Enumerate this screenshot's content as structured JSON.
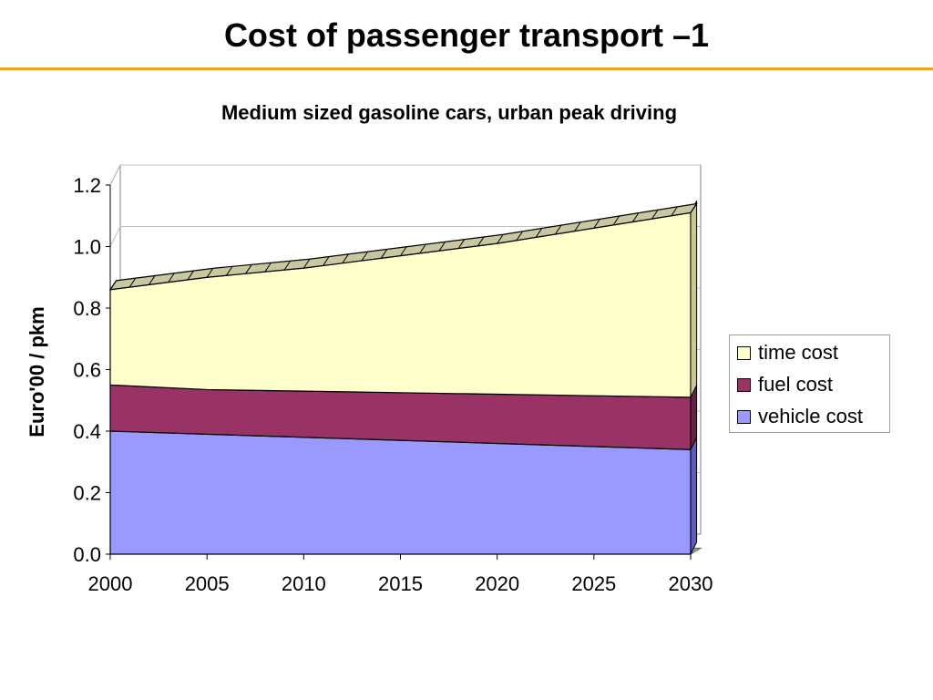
{
  "slide": {
    "title": "Cost of passenger transport –1"
  },
  "chart_data": {
    "type": "area",
    "stacked": true,
    "title": "Medium sized gasoline cars, urban peak driving",
    "xlabel": "",
    "ylabel": "Euro'00 / pkm",
    "x": [
      2000,
      2005,
      2010,
      2015,
      2020,
      2025,
      2030
    ],
    "xticks": [
      "2000",
      "2005",
      "2010",
      "2015",
      "2020",
      "2025",
      "2030"
    ],
    "yticks": [
      "0.0",
      "0.2",
      "0.4",
      "0.6",
      "0.8",
      "1.0",
      "1.2"
    ],
    "ylim": [
      0,
      1.2
    ],
    "grid": true,
    "legend_position": "right",
    "series": [
      {
        "name": "vehicle cost",
        "values": [
          0.4,
          0.39,
          0.38,
          0.37,
          0.36,
          0.35,
          0.34
        ],
        "color": "#9999ff"
      },
      {
        "name": "fuel cost",
        "values": [
          0.15,
          0.145,
          0.15,
          0.155,
          0.16,
          0.165,
          0.17
        ],
        "color": "#993366"
      },
      {
        "name": "time cost",
        "values": [
          0.31,
          0.365,
          0.4,
          0.445,
          0.49,
          0.545,
          0.6
        ],
        "color": "#ffffcc"
      }
    ]
  }
}
